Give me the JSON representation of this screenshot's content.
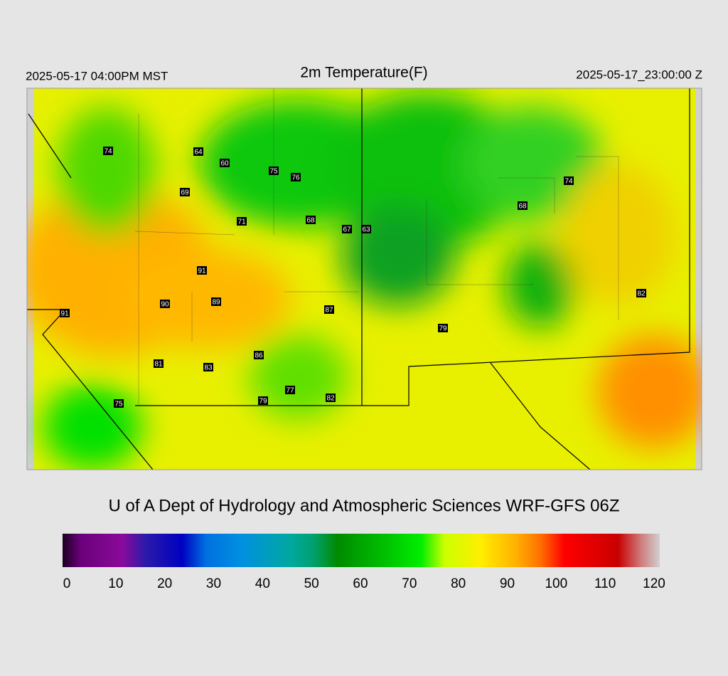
{
  "header": {
    "left": "2025-05-17 04:00PM MST",
    "title": "2m Temperature(F)",
    "right": "2025-05-17_23:00:00 Z"
  },
  "stations": [
    74,
    64,
    60,
    75,
    76,
    69,
    71,
    68,
    67,
    63,
    74,
    68,
    91,
    90,
    89,
    87,
    91,
    82,
    79,
    86,
    81,
    83,
    77,
    82,
    79,
    75
  ],
  "credit": "U of A Dept of Hydrology and Atmospheric Sciences WRF-GFS 06Z",
  "colorbar": {
    "lim": [
      0,
      120
    ],
    "ticks": [
      0,
      10,
      20,
      30,
      40,
      50,
      60,
      70,
      80,
      90,
      100,
      110,
      120
    ]
  }
}
